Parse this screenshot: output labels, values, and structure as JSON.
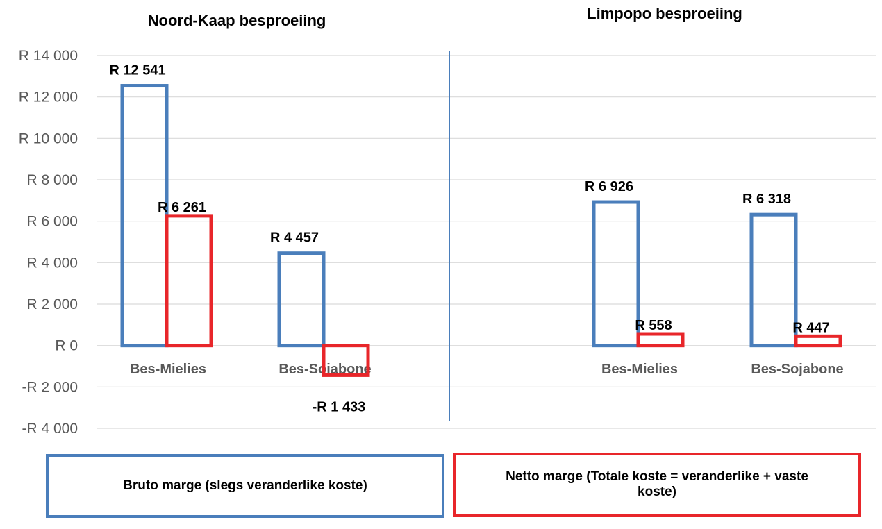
{
  "chart_data": {
    "type": "bar",
    "ylim": [
      -4000,
      14000
    ],
    "y_ticks": [
      {
        "value": 14000,
        "label": "R 14 000"
      },
      {
        "value": 12000,
        "label": "R 12 000"
      },
      {
        "value": 10000,
        "label": "R 10 000"
      },
      {
        "value": 8000,
        "label": "R 8 000"
      },
      {
        "value": 6000,
        "label": "R 6 000"
      },
      {
        "value": 4000,
        "label": "R 4 000"
      },
      {
        "value": 2000,
        "label": "R 2 000"
      },
      {
        "value": 0,
        "label": "R 0"
      },
      {
        "value": -2000,
        "label": "-R 2 000"
      },
      {
        "value": -4000,
        "label": "-R 4 000"
      }
    ],
    "grid": true,
    "panels": [
      {
        "title": "Noord-Kaap besproeiing",
        "categories": [
          "Bes-Mielies",
          "Bes-Sojabone"
        ],
        "series": [
          {
            "name": "Bruto marge (slegs veranderlike koste)",
            "color": "#4a7ebb",
            "values": [
              12541,
              4457
            ],
            "labels": [
              "R 12 541",
              "R 4 457"
            ]
          },
          {
            "name": "Netto marge (Totale koste = veranderlike + vaste koste)",
            "color": "#e8262a",
            "values": [
              6261,
              -1433
            ],
            "labels": [
              "R 6 261",
              "-R 1 433"
            ]
          }
        ]
      },
      {
        "title": "Limpopo besproeiing",
        "categories": [
          "Bes-Mielies",
          "Bes-Sojabone"
        ],
        "series": [
          {
            "name": "Bruto marge (slegs veranderlike koste)",
            "color": "#4a7ebb",
            "values": [
              6926,
              6318
            ],
            "labels": [
              "R 6 926",
              "R 6 318"
            ]
          },
          {
            "name": "Netto marge (Totale koste = veranderlike + vaste koste)",
            "color": "#e8262a",
            "values": [
              558,
              447
            ],
            "labels": [
              "R  558",
              "R  447"
            ]
          }
        ]
      }
    ]
  },
  "legend": {
    "bruto": "Bruto marge (slegs veranderlike koste)",
    "netto": "Netto marge (Totale koste = veranderlike + vaste koste)"
  },
  "colors": {
    "bruto": "#4a7ebb",
    "netto": "#e8262a",
    "grid": "#d9d9d9",
    "divider": "#4a7ebb"
  }
}
